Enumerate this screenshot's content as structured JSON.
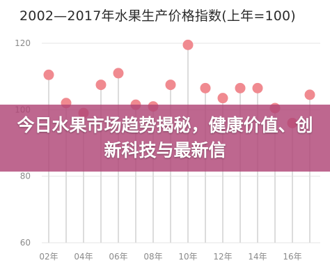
{
  "chart_data": {
    "type": "scatter",
    "title": "2002—2017年水果生产价格指数(上年=100)",
    "x": [
      2002,
      2003,
      2004,
      2005,
      2006,
      2007,
      2008,
      2009,
      2010,
      2011,
      2012,
      2013,
      2014,
      2015,
      2016,
      2017
    ],
    "values": [
      110.5,
      102.0,
      99.0,
      107.5,
      111.0,
      101.5,
      101.0,
      107.5,
      119.5,
      106.5,
      103.5,
      106.5,
      106.5,
      100.5,
      96.0,
      104.5
    ],
    "xlim": [
      2001.6,
      2017.6
    ],
    "ylim": [
      60,
      120
    ],
    "yticks": [
      60,
      80,
      100,
      120
    ],
    "xtick_labels": [
      "02年",
      "04年",
      "06年",
      "08年",
      "10年",
      "12年",
      "14年",
      "16年"
    ],
    "xtick_years": [
      2002,
      2004,
      2006,
      2008,
      2010,
      2012,
      2014,
      2016
    ],
    "grid": true,
    "marker_color": "#f08a90",
    "stem_color": "#dcdcdc"
  },
  "overlay_banner": {
    "text": "今日水果市场趋势揭秘，健康价值、创新科技与最新信",
    "color": "#b04676"
  }
}
